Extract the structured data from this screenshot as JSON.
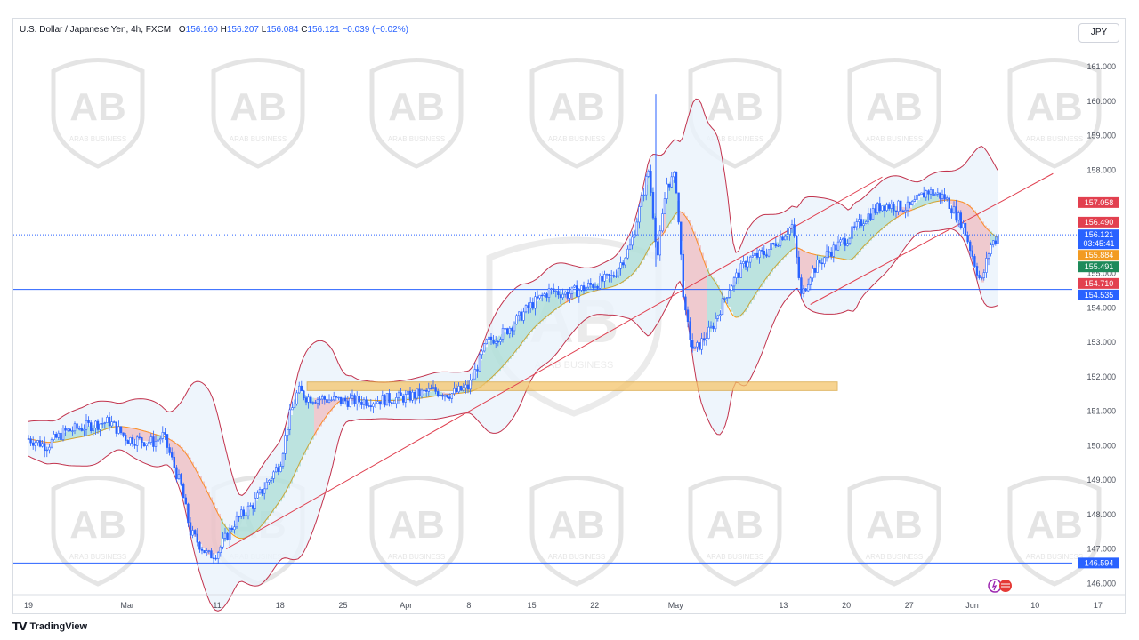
{
  "header": {
    "symbol": "U.S. Dollar / Japanese Yen, 4h, FXCM",
    "open_label": "O",
    "open": "156.160",
    "high_label": "H",
    "high": "156.207",
    "low_label": "L",
    "low": "156.084",
    "close_label": "C",
    "close": "156.121",
    "change": "−0.039 (−0.02%)"
  },
  "currency": "JPY",
  "footer": {
    "brand": "TradingView"
  },
  "watermark": {
    "name": "ARAB BUSINESS",
    "monogram": "AB"
  },
  "colors": {
    "candle": "#2962ff",
    "bollinger": "#c2334d",
    "trendline": "#e04050",
    "zone": "#f5c56b",
    "support": "#2962ff",
    "cloud_up": "#5fc4a8",
    "cloud_down": "#f07a7a",
    "basis": "#ff9800"
  },
  "chart_data": {
    "type": "candlestick",
    "symbol": "USDJPY",
    "timeframe": "4h",
    "ylim": [
      145.7,
      161.7
    ],
    "y_ticks": [
      "161.000",
      "160.000",
      "159.000",
      "158.000",
      "157.000",
      "156.000",
      "155.000",
      "154.000",
      "153.000",
      "152.000",
      "151.000",
      "150.000",
      "149.000",
      "148.000",
      "147.000",
      "146.000"
    ],
    "x_ticks": [
      {
        "label": "19",
        "x": "Feb 19"
      },
      {
        "label": "Mar",
        "x": "Mar 1"
      },
      {
        "label": "11",
        "x": "Mar 11"
      },
      {
        "label": "18",
        "x": "Mar 18"
      },
      {
        "label": "25",
        "x": "Mar 25"
      },
      {
        "label": "Apr",
        "x": "Apr 1"
      },
      {
        "label": "8",
        "x": "Apr 8"
      },
      {
        "label": "15",
        "x": "Apr 15"
      },
      {
        "label": "22",
        "x": "Apr 22"
      },
      {
        "label": "May",
        "x": "May 1"
      },
      {
        "label": "13",
        "x": "May 13"
      },
      {
        "label": "20",
        "x": "May 20"
      },
      {
        "label": "27",
        "x": "May 27"
      },
      {
        "label": "Jun",
        "x": "Jun 3"
      },
      {
        "label": "10",
        "x": "Jun 10"
      },
      {
        "label": "17",
        "x": "Jun 17"
      }
    ],
    "price_path": [
      [
        "Feb 19",
        150.2
      ],
      [
        "Feb 21",
        150.0
      ],
      [
        "Feb 23",
        150.4
      ],
      [
        "Feb 26",
        150.6
      ],
      [
        "Feb 28",
        150.7
      ],
      [
        "Mar 1",
        150.2
      ],
      [
        "Mar 4",
        150.1
      ],
      [
        "Mar 5",
        150.3
      ],
      [
        "Mar 7",
        148.8
      ],
      [
        "Mar 8",
        147.5
      ],
      [
        "Mar 10",
        146.8
      ],
      [
        "Mar 11",
        146.9
      ],
      [
        "Mar 13",
        147.8
      ],
      [
        "Mar 15",
        148.3
      ],
      [
        "Mar 18",
        149.5
      ],
      [
        "Mar 19",
        150.8
      ],
      [
        "Mar 20",
        151.6
      ],
      [
        "Mar 21",
        151.4
      ],
      [
        "Mar 25",
        151.3
      ],
      [
        "Mar 28",
        151.3
      ],
      [
        "Apr 1",
        151.4
      ],
      [
        "Apr 4",
        151.6
      ],
      [
        "Apr 6",
        151.5
      ],
      [
        "Apr 8",
        151.7
      ],
      [
        "Apr 10",
        153.0
      ],
      [
        "Apr 12",
        153.3
      ],
      [
        "Apr 15",
        154.1
      ],
      [
        "Apr 17",
        154.5
      ],
      [
        "Apr 19",
        154.4
      ],
      [
        "Apr 22",
        154.7
      ],
      [
        "Apr 24",
        154.9
      ],
      [
        "Apr 26",
        155.8
      ],
      [
        "Apr 28",
        158.0
      ],
      [
        "Apr 29",
        155.5
      ],
      [
        "Apr 30",
        157.6
      ],
      [
        "May 1",
        157.8
      ],
      [
        "May 2",
        153.9
      ],
      [
        "May 3",
        152.7
      ],
      [
        "May 5",
        153.4
      ],
      [
        "May 7",
        154.6
      ],
      [
        "May 9",
        155.4
      ],
      [
        "May 11",
        155.6
      ],
      [
        "May 14",
        156.4
      ],
      [
        "May 15",
        154.3
      ],
      [
        "May 16",
        155.0
      ],
      [
        "May 18",
        155.6
      ],
      [
        "May 20",
        156.0
      ],
      [
        "May 22",
        156.6
      ],
      [
        "May 24",
        157.0
      ],
      [
        "May 27",
        156.9
      ],
      [
        "May 29",
        157.4
      ],
      [
        "May 31",
        157.2
      ],
      [
        "Jun 2",
        156.4
      ],
      [
        "Jun 4",
        154.7
      ],
      [
        "Jun 5",
        155.8
      ],
      [
        "Jun 6",
        156.121
      ]
    ],
    "price_labels": [
      {
        "value": "157.058",
        "color": "#e2404f"
      },
      {
        "value": "156.490",
        "color": "#e2404f"
      },
      {
        "value": "156.121",
        "color": "#2962ff",
        "countdown": "03:45:41"
      },
      {
        "value": "155.884",
        "color": "#f29b22"
      },
      {
        "value": "155.491",
        "color": "#1e8a5a"
      },
      {
        "value": "154.710",
        "color": "#e2404f"
      },
      {
        "value": "154.535",
        "color": "#2962ff"
      },
      {
        "value": "146.594",
        "color": "#2962ff"
      }
    ],
    "horizontal_lines": [
      154.535,
      146.594
    ],
    "zone": {
      "x0": "Mar 21",
      "x1": "May 19",
      "y0": 151.6,
      "y1": 151.85
    },
    "trendlines": [
      {
        "x0": "Mar 12",
        "y0": 147.0,
        "x1": "May 24",
        "y1": 157.8
      },
      {
        "x0": "May 16",
        "y0": 154.1,
        "x1": "Jun 12",
        "y1": 157.9
      }
    ]
  }
}
